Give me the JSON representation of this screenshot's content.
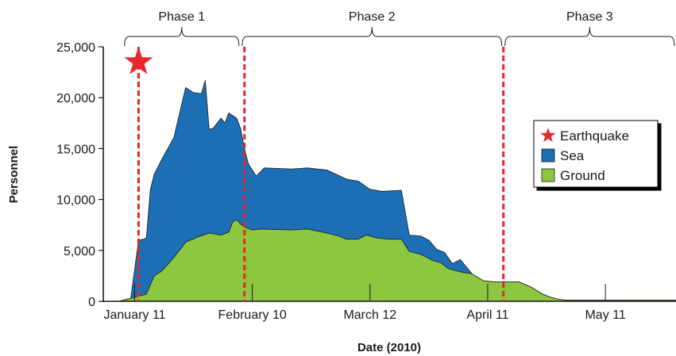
{
  "chart_data": {
    "type": "area",
    "title": "",
    "xlabel": "Date (2010)",
    "ylabel": "Personnel",
    "ylim": [
      0,
      25000
    ],
    "yticks": [
      0,
      5000,
      10000,
      15000,
      20000,
      25000
    ],
    "ytick_labels": [
      "0",
      "5,000",
      "10,000",
      "15,000",
      "20,000",
      "25,000"
    ],
    "xlim": [
      "2010-01-03",
      "2010-05-29"
    ],
    "xticks": [
      "2010-01-11",
      "2010-02-10",
      "2010-03-12",
      "2010-04-11",
      "2010-05-11"
    ],
    "xtick_labels": [
      "January 11",
      "February 10",
      "March 12",
      "April 11",
      "May 11"
    ],
    "grid": false,
    "legend": {
      "position": "right",
      "entries": [
        {
          "name": "Earthquake",
          "color": "#e8262b",
          "marker": "star"
        },
        {
          "name": "Sea",
          "color": "#1c6fb5",
          "marker": "square"
        },
        {
          "name": "Ground",
          "color": "#8dc63f",
          "marker": "square"
        }
      ]
    },
    "phases": [
      {
        "label": "Phase 1",
        "start": "2010-01-08",
        "end": "2010-02-07"
      },
      {
        "label": "Phase 2",
        "start": "2010-02-07",
        "end": "2010-04-15"
      },
      {
        "label": "Phase 3",
        "start": "2010-04-15",
        "end": "2010-05-29"
      }
    ],
    "events": [
      {
        "name": "Earthquake",
        "date": "2010-01-12",
        "value": 23500,
        "marker": "star"
      }
    ],
    "phase_boundaries": [
      "2010-01-12",
      "2010-02-08",
      "2010-04-15"
    ],
    "series": [
      {
        "name": "Ground",
        "color": "#8dc63f",
        "points": [
          [
            "2010-01-07",
            0
          ],
          [
            "2010-01-10",
            300
          ],
          [
            "2010-01-12",
            500
          ],
          [
            "2010-01-14",
            700
          ],
          [
            "2010-01-16",
            2500
          ],
          [
            "2010-01-18",
            3000
          ],
          [
            "2010-01-21",
            4300
          ],
          [
            "2010-01-24",
            5800
          ],
          [
            "2010-01-27",
            6300
          ],
          [
            "2010-01-30",
            6700
          ],
          [
            "2010-02-02",
            6500
          ],
          [
            "2010-02-04",
            6800
          ],
          [
            "2010-02-05",
            7800
          ],
          [
            "2010-02-06",
            8000
          ],
          [
            "2010-02-07",
            7600
          ],
          [
            "2010-02-08",
            7300
          ],
          [
            "2010-02-10",
            7000
          ],
          [
            "2010-02-12",
            7100
          ],
          [
            "2010-02-20",
            7000
          ],
          [
            "2010-02-24",
            7100
          ],
          [
            "2010-03-01",
            6700
          ],
          [
            "2010-03-04",
            6400
          ],
          [
            "2010-03-06",
            6100
          ],
          [
            "2010-03-09",
            6100
          ],
          [
            "2010-03-11",
            6500
          ],
          [
            "2010-03-12",
            6400
          ],
          [
            "2010-03-14",
            6200
          ],
          [
            "2010-03-17",
            6100
          ],
          [
            "2010-03-20",
            6100
          ],
          [
            "2010-03-22",
            4900
          ],
          [
            "2010-03-25",
            4600
          ],
          [
            "2010-03-28",
            4000
          ],
          [
            "2010-03-30",
            3800
          ],
          [
            "2010-04-01",
            3200
          ],
          [
            "2010-04-04",
            2900
          ],
          [
            "2010-04-07",
            2700
          ],
          [
            "2010-04-10",
            2000
          ],
          [
            "2010-04-13",
            1900
          ],
          [
            "2010-04-16",
            1900
          ],
          [
            "2010-04-19",
            1900
          ],
          [
            "2010-04-22",
            1400
          ],
          [
            "2010-04-25",
            700
          ],
          [
            "2010-04-27",
            400
          ],
          [
            "2010-04-29",
            200
          ],
          [
            "2010-05-01",
            100
          ],
          [
            "2010-05-29",
            100
          ]
        ]
      },
      {
        "name": "Sea",
        "color": "#1c6fb5",
        "points": [
          [
            "2010-01-07",
            0
          ],
          [
            "2010-01-10",
            300
          ],
          [
            "2010-01-12",
            6000
          ],
          [
            "2010-01-13",
            6100
          ],
          [
            "2010-01-14",
            6200
          ],
          [
            "2010-01-15",
            11000
          ],
          [
            "2010-01-16",
            12500
          ],
          [
            "2010-01-18",
            14000
          ],
          [
            "2010-01-21",
            16100
          ],
          [
            "2010-01-24",
            21000
          ],
          [
            "2010-01-26",
            20500
          ],
          [
            "2010-01-28",
            20400
          ],
          [
            "2010-01-29",
            21700
          ],
          [
            "2010-01-30",
            16900
          ],
          [
            "2010-01-31",
            17000
          ],
          [
            "2010-02-02",
            18000
          ],
          [
            "2010-02-03",
            17500
          ],
          [
            "2010-02-04",
            18500
          ],
          [
            "2010-02-06",
            18000
          ],
          [
            "2010-02-07",
            17000
          ],
          [
            "2010-02-08",
            15000
          ],
          [
            "2010-02-09",
            13500
          ],
          [
            "2010-02-11",
            12300
          ],
          [
            "2010-02-13",
            13100
          ],
          [
            "2010-02-20",
            13000
          ],
          [
            "2010-02-24",
            13100
          ],
          [
            "2010-03-01",
            12900
          ],
          [
            "2010-03-06",
            12000
          ],
          [
            "2010-03-09",
            11800
          ],
          [
            "2010-03-12",
            11000
          ],
          [
            "2010-03-15",
            10800
          ],
          [
            "2010-03-20",
            10900
          ],
          [
            "2010-03-22",
            6500
          ],
          [
            "2010-03-25",
            6400
          ],
          [
            "2010-03-27",
            6000
          ],
          [
            "2010-03-29",
            5100
          ],
          [
            "2010-03-31",
            4800
          ],
          [
            "2010-04-02",
            3700
          ],
          [
            "2010-04-04",
            4100
          ],
          [
            "2010-04-07",
            2700
          ],
          [
            "2010-04-10",
            2000
          ],
          [
            "2010-04-13",
            1900
          ],
          [
            "2010-04-16",
            1900
          ],
          [
            "2010-04-19",
            1900
          ],
          [
            "2010-04-22",
            1400
          ],
          [
            "2010-04-25",
            700
          ],
          [
            "2010-04-27",
            400
          ],
          [
            "2010-04-29",
            200
          ],
          [
            "2010-05-01",
            100
          ],
          [
            "2010-05-29",
            100
          ]
        ]
      }
    ]
  }
}
